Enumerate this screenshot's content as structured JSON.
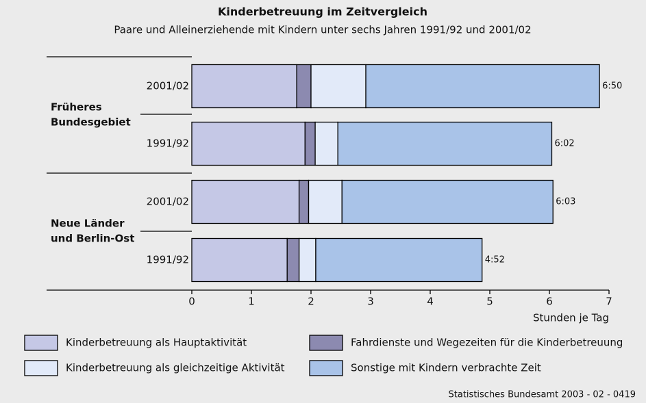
{
  "chart_data": {
    "type": "stacked-barh",
    "title": "Kinderbetreuung im Zeitvergleich",
    "subtitle": "Paare und Alleinerziehende mit Kindern unter sechs Jahren 1991/92 und 2001/02",
    "groups": [
      {
        "lines": [
          "Früheres",
          "Bundesgebiet"
        ]
      },
      {
        "lines": [
          "Neue Länder",
          "und Berlin-Ost"
        ]
      }
    ],
    "categories": [
      "2001/02",
      "1991/92",
      "2001/02",
      "1991/92"
    ],
    "series": [
      {
        "name": "Kinderbetreuung als Hauptaktivität",
        "color": "#c5c8e6",
        "values": [
          1.76,
          1.9,
          1.8,
          1.6
        ]
      },
      {
        "name": "Fahrdienste und Wegezeiten für die Kinderbetreuung",
        "color": "#8c8ab0",
        "values": [
          0.24,
          0.17,
          0.16,
          0.2
        ]
      },
      {
        "name": "Kinderbetreuung als gleichzeitige Aktivität",
        "color": "#e2eaf9",
        "values": [
          0.92,
          0.38,
          0.56,
          0.28
        ]
      },
      {
        "name": "Sonstige mit Kindern verbrachte Zeit",
        "color": "#a9c3e8",
        "values": [
          3.92,
          3.59,
          3.54,
          2.79
        ]
      }
    ],
    "total_labels": [
      "6:50",
      "6:02",
      "6:03",
      "4:52"
    ],
    "xlim": [
      0,
      7
    ],
    "xticks": [
      0,
      1,
      2,
      3,
      4,
      5,
      6,
      7
    ],
    "xlabel": "Stunden je Tag",
    "source": "Statistisches Bundesamt 2003 - 02 - 0419"
  }
}
